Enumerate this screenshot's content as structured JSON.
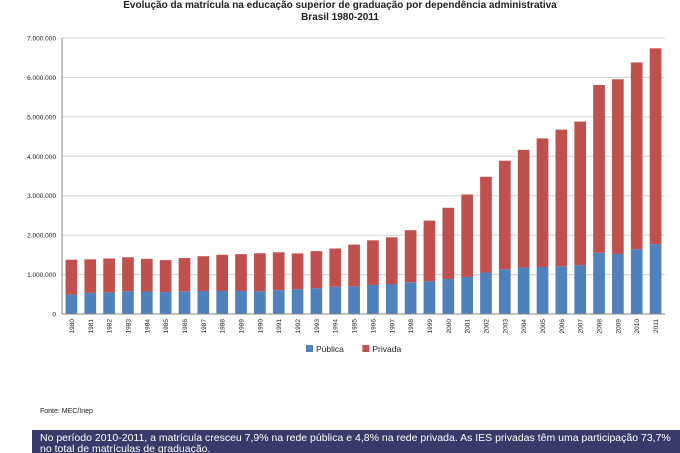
{
  "chart_data": {
    "type": "bar",
    "stacked": true,
    "title": "Evolução da matrícula na educação superior de graduação por dependência administrativa",
    "subtitle": "Brasil 1980-2011",
    "categories": [
      "1980",
      "1981",
      "1982",
      "1983",
      "1984",
      "1985",
      "1986",
      "1987",
      "1988",
      "1989",
      "1990",
      "1991",
      "1992",
      "1993",
      "1994",
      "1995",
      "1996",
      "1997",
      "1998",
      "1999",
      "2000",
      "2001",
      "2002",
      "2003",
      "2004",
      "2005",
      "2006",
      "2007",
      "2008",
      "2009",
      "2010",
      "2011"
    ],
    "series": [
      {
        "name": "Pública",
        "color": "#4f81bd",
        "values": [
          492000,
          535000,
          549000,
          576000,
          571000,
          556000,
          577000,
          584000,
          585000,
          584000,
          579000,
          605000,
          629000,
          653000,
          690000,
          700000,
          736000,
          759000,
          804000,
          832000,
          887000,
          939000,
          1052000,
          1137000,
          1178000,
          1192000,
          1209000,
          1240000,
          1552000,
          1523000,
          1643000,
          1773000
        ]
      },
      {
        "name": "Privada",
        "color": "#c0504d",
        "values": [
          885000,
          851000,
          858000,
          862000,
          828000,
          811000,
          842000,
          882000,
          918000,
          934000,
          961000,
          960000,
          907000,
          941000,
          971000,
          1060000,
          1133000,
          1186000,
          1321000,
          1537000,
          1807000,
          2092000,
          2429000,
          2751000,
          2985000,
          3261000,
          3467000,
          3640000,
          4255000,
          4430000,
          4737000,
          4966000
        ]
      }
    ],
    "yticks": [
      "0",
      "1.000.000",
      "2.000.000",
      "3.000.000",
      "4.000.000",
      "5.000.000",
      "6.000.000",
      "7.000.000"
    ],
    "ylim": [
      0,
      7000000
    ],
    "grid": true,
    "legend_position": "bottom"
  },
  "source_text": "Fonte: MEC/Inep",
  "caption_text": "No período 2010-2011, a matrícula cresceu 7,9% na rede pública e 4,8% na rede privada. As IES privadas têm uma participação 73,7% no total de matrículas de graduação."
}
